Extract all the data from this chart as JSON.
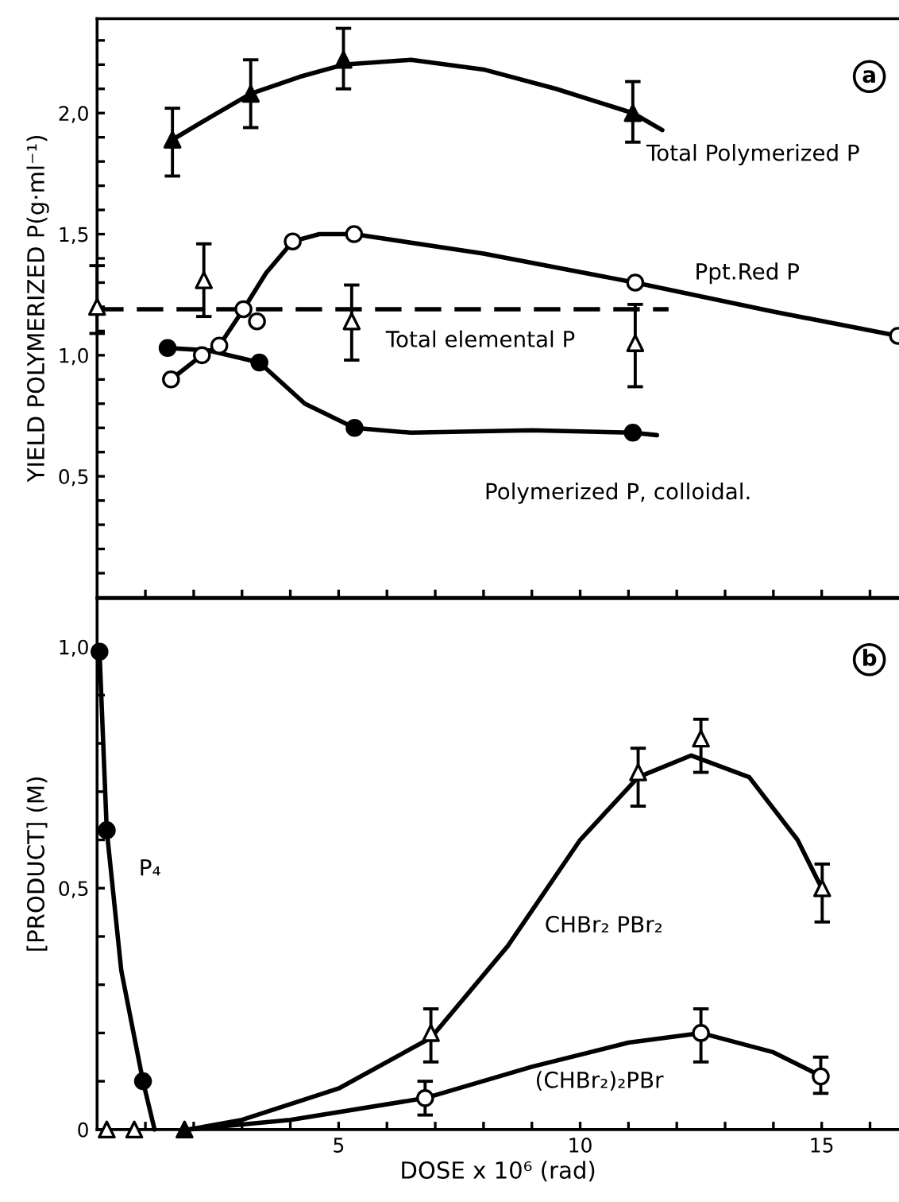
{
  "chart_data": [
    {
      "type": "line",
      "ylabel": "YIELD POLYMERIZED P(g·ml⁻¹)",
      "tick_labels": "y",
      "grid": false,
      "legend": false,
      "xlim": [
        0,
        16.6
      ],
      "ylim": [
        0,
        2.39
      ],
      "xticks": [
        {
          "value": 1,
          "label": null
        },
        {
          "value": 2,
          "label": null
        },
        {
          "value": 3,
          "label": null
        },
        {
          "value": 4,
          "label": null
        },
        5,
        {
          "value": 6,
          "label": null
        },
        {
          "value": 7,
          "label": null
        },
        {
          "value": 8,
          "label": null
        },
        {
          "value": 9,
          "label": null
        },
        10,
        {
          "value": 11,
          "label": null
        },
        {
          "value": 12,
          "label": null
        },
        {
          "value": 13,
          "label": null
        },
        {
          "value": 14,
          "label": null
        },
        15,
        {
          "value": 16,
          "label": null
        }
      ],
      "yticks": [
        {
          "value": 0.1,
          "label": null
        },
        {
          "value": 0.2,
          "label": null
        },
        {
          "value": 0.3,
          "label": null
        },
        {
          "value": 0.4,
          "label": null
        },
        {
          "value": 0.5,
          "label": "0,5"
        },
        {
          "value": 0.6,
          "label": null
        },
        {
          "value": 0.7,
          "label": null
        },
        {
          "value": 0.8,
          "label": null
        },
        {
          "value": 0.9,
          "label": null
        },
        {
          "value": 1.0,
          "label": "1,0"
        },
        {
          "value": 1.1,
          "label": null
        },
        {
          "value": 1.2,
          "label": null
        },
        {
          "value": 1.3,
          "label": null
        },
        {
          "value": 1.4,
          "label": null
        },
        {
          "value": 1.5,
          "label": "1,5"
        },
        {
          "value": 1.6,
          "label": null
        },
        {
          "value": 1.7,
          "label": null
        },
        {
          "value": 1.8,
          "label": null
        },
        {
          "value": 1.9,
          "label": null
        },
        {
          "value": 2.0,
          "label": "2,0"
        },
        {
          "value": 2.1,
          "label": null
        },
        {
          "value": 2.2,
          "label": null
        },
        {
          "value": 2.3,
          "label": null
        }
      ],
      "series": [
        {
          "name": "Total Polymerized P",
          "color": "#000000",
          "marker": "none",
          "line_style": "solid",
          "x": [
            1.56,
            2.4,
            3.18,
            4.2,
            5.1,
            6.5,
            8,
            9.5,
            11.09,
            11.7
          ],
          "values": [
            1.89,
            1.99,
            2.08,
            2.15,
            2.2,
            2.22,
            2.18,
            2.1,
            2.0,
            1.93
          ]
        },
        {
          "name": "Ppt.Red P",
          "color": "#000000",
          "marker": "none",
          "line_style": "solid",
          "x": [
            1.53,
            2.17,
            2.53,
            3.03,
            3.5,
            4.05,
            4.6,
            5.32,
            8,
            11.14,
            14,
            16.58
          ],
          "values": [
            0.9,
            1.0,
            1.04,
            1.19,
            1.34,
            1.47,
            1.5,
            1.5,
            1.42,
            1.3,
            1.18,
            1.08
          ]
        },
        {
          "name": "Polymerized P, colloidal.",
          "color": "#000000",
          "marker": "none",
          "line_style": "solid",
          "x": [
            1.46,
            2.3,
            3.36,
            4.3,
            5.33,
            6.5,
            9,
            11.09,
            11.59
          ],
          "values": [
            1.03,
            1.02,
            0.97,
            0.8,
            0.7,
            0.68,
            0.69,
            0.68,
            0.67
          ]
        },
        {
          "name": "Total elemental P",
          "color": "#000000",
          "marker": "none",
          "line_style": "dashed",
          "x": [
            0,
            11.83
          ],
          "values": [
            1.19,
            1.19
          ]
        },
        {
          "type": "scatter",
          "color": "#000000",
          "marker": "triangle",
          "x": [
            1.56,
            3.18,
            5.1,
            11.09
          ],
          "values": [
            1.89,
            2.08,
            2.22,
            2.0
          ],
          "errors": [
            [
              1.74,
              2.02
            ],
            [
              1.94,
              2.22
            ],
            [
              2.1,
              2.35
            ],
            [
              1.88,
              2.13
            ]
          ]
        },
        {
          "type": "scatter",
          "color": "#ffffff",
          "marker": "circle",
          "x": [
            1.53,
            2.17,
            2.53,
            3.03,
            3.31,
            4.05,
            5.32,
            11.14,
            16.58
          ],
          "values": [
            0.9,
            1.0,
            1.04,
            1.19,
            1.14,
            1.47,
            1.5,
            1.3,
            1.08
          ]
        },
        {
          "type": "scatter",
          "color": "#ffffff",
          "marker": "triangle",
          "x": [
            0,
            2.21,
            5.27,
            11.14
          ],
          "values": [
            1.2,
            1.31,
            1.14,
            1.05
          ],
          "errors": [
            [
              1.09,
              1.37
            ],
            [
              1.16,
              1.46
            ],
            [
              0.98,
              1.29
            ],
            [
              0.87,
              1.21
            ]
          ]
        },
        {
          "type": "scatter",
          "color": "#000000",
          "marker": "circle",
          "x": [
            1.46,
            3.36,
            5.33,
            11.09
          ],
          "values": [
            1.03,
            0.97,
            0.7,
            0.68
          ]
        }
      ],
      "annotations": [
        "a"
      ]
    },
    {
      "type": "line",
      "xlabel": "DOSE x 10⁶ (rad)",
      "ylabel": "[PRODUCT] (M)",
      "grid": false,
      "legend": false,
      "xlim": [
        0,
        16.6
      ],
      "ylim": [
        0,
        1.1
      ],
      "xticks": [
        {
          "value": 1,
          "label": null
        },
        {
          "value": 2,
          "label": null
        },
        {
          "value": 3,
          "label": null
        },
        {
          "value": 4,
          "label": null
        },
        5,
        {
          "value": 6,
          "label": null
        },
        {
          "value": 7,
          "label": null
        },
        {
          "value": 8,
          "label": null
        },
        {
          "value": 9,
          "label": null
        },
        10,
        {
          "value": 11,
          "label": null
        },
        {
          "value": 12,
          "label": null
        },
        {
          "value": 13,
          "label": null
        },
        {
          "value": 14,
          "label": null
        },
        15,
        {
          "value": 16,
          "label": null
        }
      ],
      "yticks": [
        0,
        {
          "value": 0.1,
          "label": null
        },
        {
          "value": 0.2,
          "label": null
        },
        {
          "value": 0.3,
          "label": null
        },
        {
          "value": 0.4,
          "label": null
        },
        {
          "value": 0.5,
          "label": "0,5"
        },
        {
          "value": 0.6,
          "label": null
        },
        {
          "value": 0.7,
          "label": null
        },
        {
          "value": 0.8,
          "label": null
        },
        {
          "value": 0.9,
          "label": null
        },
        {
          "value": 1.0,
          "label": "1,0"
        }
      ],
      "series": [
        {
          "name": "P₄",
          "color": "#000000",
          "marker": "none",
          "line_style": "solid",
          "x": [
            0,
            0.05,
            0.2,
            0.5,
            0.95,
            1.19
          ],
          "values": [
            1.0,
            0.99,
            0.62,
            0.33,
            0.1,
            0
          ]
        },
        {
          "name": "CHBr₂ PBr₂",
          "color": "#000000",
          "marker": "none",
          "line_style": "solid",
          "x": [
            1.9,
            3,
            5,
            6.91,
            8.5,
            10,
            11.2,
            12.3,
            13.5,
            14.5,
            15.0
          ],
          "values": [
            0,
            0.02,
            0.085,
            0.19,
            0.38,
            0.6,
            0.73,
            0.775,
            0.73,
            0.6,
            0.5
          ]
        },
        {
          "name": "(CHBr₂)₂PBr",
          "color": "#000000",
          "marker": "none",
          "line_style": "solid",
          "x": [
            1.9,
            4,
            6.79,
            9,
            11,
            12.5,
            14,
            15.0
          ],
          "values": [
            0,
            0.02,
            0.065,
            0.13,
            0.18,
            0.2,
            0.16,
            0.11
          ]
        },
        {
          "type": "scatter",
          "color": "#000000",
          "marker": "circle",
          "x": [
            0.05,
            0.2,
            0.95
          ],
          "values": [
            0.99,
            0.62,
            0.1
          ]
        },
        {
          "type": "scatter",
          "color": "#ffffff",
          "marker": "triangle",
          "x": [
            0.2,
            0.77,
            6.91,
            11.2,
            12.5,
            15.01
          ],
          "values": [
            0,
            0,
            0.2,
            0.74,
            0.81,
            0.5
          ],
          "errors": [
            null,
            null,
            [
              0.14,
              0.25
            ],
            [
              0.67,
              0.79
            ],
            [
              0.74,
              0.85
            ],
            [
              0.43,
              0.55
            ]
          ]
        },
        {
          "type": "scatter",
          "color": "#ffffff",
          "marker": "circle",
          "x": [
            6.79,
            12.5,
            14.98
          ],
          "values": [
            0.065,
            0.2,
            0.11
          ],
          "errors": [
            [
              0.03,
              0.1
            ],
            [
              0.14,
              0.25
            ],
            [
              0.075,
              0.15
            ]
          ]
        },
        {
          "type": "scatter",
          "color": "#000000",
          "marker": "triangle",
          "x": [
            1.81
          ],
          "values": [
            0
          ]
        }
      ],
      "annotations": [
        "b"
      ]
    }
  ]
}
